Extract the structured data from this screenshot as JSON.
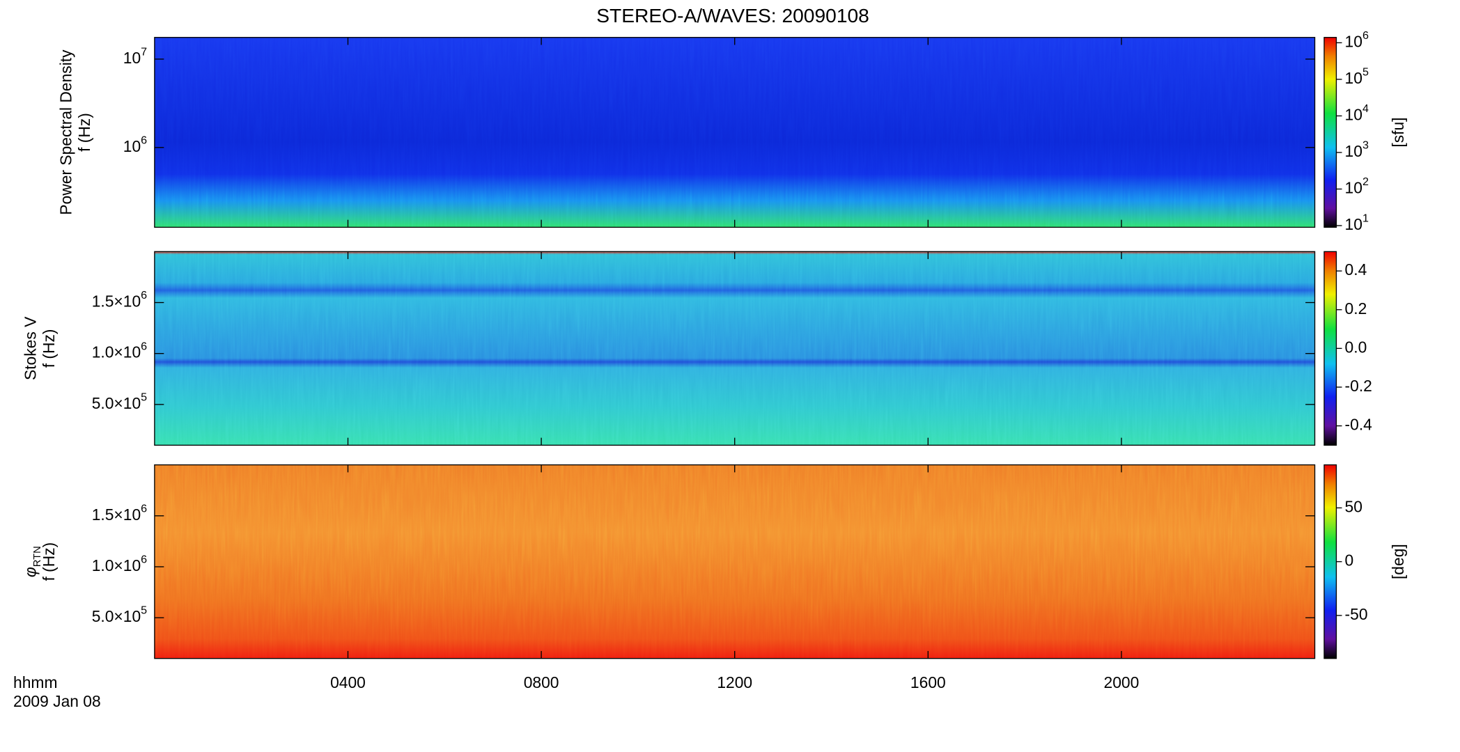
{
  "chart_data": [
    {
      "type": "spectrogram",
      "title": "STEREO-A/WAVES: 20090108",
      "ylabel": [
        "Power Spectral Density",
        "f (Hz)"
      ],
      "ylog": true,
      "ylim": [
        125000,
        17600000
      ],
      "yticks": [
        {
          "value": 1000000,
          "label": "10",
          "exponent": "6"
        },
        {
          "value": 10000000,
          "label": "10",
          "exponent": "7"
        }
      ],
      "colorbar": {
        "log": true,
        "lim": [
          9,
          1400000
        ],
        "ticks": [
          {
            "value": 10,
            "label": "10",
            "exponent": "1"
          },
          {
            "value": 100,
            "label": "10",
            "exponent": "2"
          },
          {
            "value": 1000,
            "label": "10",
            "exponent": "3"
          },
          {
            "value": 10000,
            "label": "10",
            "exponent": "4"
          },
          {
            "value": 100000,
            "label": "10",
            "exponent": "5"
          },
          {
            "value": 1000000,
            "label": "10",
            "exponent": "6"
          }
        ],
        "label": "[sfu]"
      }
    },
    {
      "type": "spectrogram",
      "ylabel": [
        "Stokes V",
        "f (Hz)"
      ],
      "ylim": [
        100000,
        2000000
      ],
      "yticks": [
        {
          "value": 500000,
          "label": "5.0×10",
          "exponent": "5"
        },
        {
          "value": 1000000,
          "label": "1.0×10",
          "exponent": "6"
        },
        {
          "value": 1500000,
          "label": "1.5×10",
          "exponent": "6"
        }
      ],
      "colorbar": {
        "lim": [
          -0.5,
          0.5
        ],
        "ticks": [
          -0.4,
          -0.2,
          {
            "value": 0,
            "label": "0.0"
          },
          0.2,
          0.4
        ]
      }
    },
    {
      "type": "spectrogram",
      "ylabel_symbol": "φ",
      "ylabel_subscript": "RTN",
      "ylabel": [
        "f (Hz)"
      ],
      "ylim": [
        100000,
        2000000
      ],
      "yticks": [
        {
          "value": 500000,
          "label": "5.0×10",
          "exponent": "5"
        },
        {
          "value": 1000000,
          "label": "1.0×10",
          "exponent": "6"
        },
        {
          "value": 1500000,
          "label": "1.5×10",
          "exponent": "6"
        }
      ],
      "colorbar": {
        "lim": [
          -90,
          90
        ],
        "ticks": [
          -50,
          0,
          50
        ],
        "label": "[deg]"
      },
      "xlim": [
        0,
        24
      ],
      "xticks": [
        {
          "value": 4,
          "label": "0400"
        },
        {
          "value": 8,
          "label": "0800"
        },
        {
          "value": 12,
          "label": "1200"
        },
        {
          "value": 16,
          "label": "1600"
        },
        {
          "value": 20,
          "label": "2000"
        }
      ],
      "xlabel": "hhmm",
      "date_label": "2009 Jan 08"
    }
  ]
}
